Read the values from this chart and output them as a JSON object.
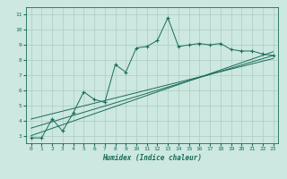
{
  "xlabel": "Humidex (Indice chaleur)",
  "bg_color": "#cce8e0",
  "line_color": "#1a6b5a",
  "grid_color": "#aaccc4",
  "xlim": [
    -0.5,
    23.5
  ],
  "ylim": [
    2.5,
    11.5
  ],
  "xticks": [
    0,
    1,
    2,
    3,
    4,
    5,
    6,
    7,
    8,
    9,
    10,
    11,
    12,
    13,
    14,
    15,
    16,
    17,
    18,
    19,
    20,
    21,
    22,
    23
  ],
  "yticks": [
    3,
    4,
    5,
    6,
    7,
    8,
    9,
    10,
    11
  ],
  "main_x": [
    0,
    1,
    2,
    3,
    4,
    5,
    6,
    7,
    8,
    9,
    10,
    11,
    12,
    13,
    14,
    15,
    16,
    17,
    18,
    19,
    20,
    21,
    22,
    23
  ],
  "main_y": [
    2.85,
    2.85,
    4.1,
    3.3,
    4.5,
    5.9,
    5.4,
    5.2,
    7.7,
    7.2,
    8.8,
    8.9,
    9.3,
    10.8,
    8.9,
    9.0,
    9.1,
    9.0,
    9.1,
    8.7,
    8.6,
    8.6,
    8.4,
    8.3
  ],
  "line1_x": [
    0,
    23
  ],
  "line1_y": [
    3.0,
    8.55
  ],
  "line2_x": [
    0,
    23
  ],
  "line2_y": [
    3.5,
    8.3
  ],
  "line3_x": [
    0,
    23
  ],
  "line3_y": [
    4.1,
    8.1
  ]
}
